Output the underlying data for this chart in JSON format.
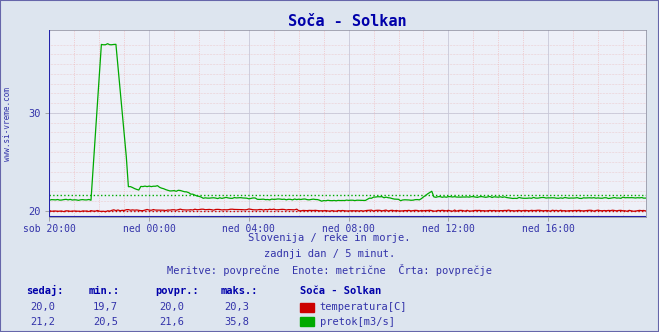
{
  "title": "Soča - Solkan",
  "background_color": "#dde5ef",
  "plot_bg_color": "#eef0f8",
  "grid_color_major_h": "#c8c8d8",
  "grid_color_minor_v": "#f0b0b0",
  "grid_color_major_v": "#c8c8d8",
  "x_labels": [
    "sob 20:00",
    "ned 00:00",
    "ned 04:00",
    "ned 08:00",
    "ned 12:00",
    "ned 16:00"
  ],
  "y_ticks": [
    20,
    30
  ],
  "y_lim": [
    19.3,
    38.5
  ],
  "subtitle_lines": [
    "Slovenija / reke in morje.",
    "zadnji dan / 5 minut.",
    "Meritve: povprečne  Enote: metrične  Črta: povprečje"
  ],
  "table_headers": [
    "sedaj:",
    "min.:",
    "povpr.:",
    "maks.:"
  ],
  "table_row1": [
    "20,0",
    "19,7",
    "20,0",
    "20,3"
  ],
  "table_row2": [
    "21,2",
    "20,5",
    "21,6",
    "35,8"
  ],
  "station_label": "Soča - Solkan",
  "label_temp": "temperatura[C]",
  "label_flow": "pretok[m3/s]",
  "temp_color": "#cc0000",
  "flow_color": "#00aa00",
  "avg_temp": 20.0,
  "avg_flow": 21.6,
  "watermark": "www.si-vreme.com",
  "border_color": "#4444aa",
  "text_color": "#3333aa",
  "title_color": "#0000aa",
  "n_points": 288,
  "x_tick_indices": [
    0,
    48,
    96,
    144,
    192,
    240
  ]
}
